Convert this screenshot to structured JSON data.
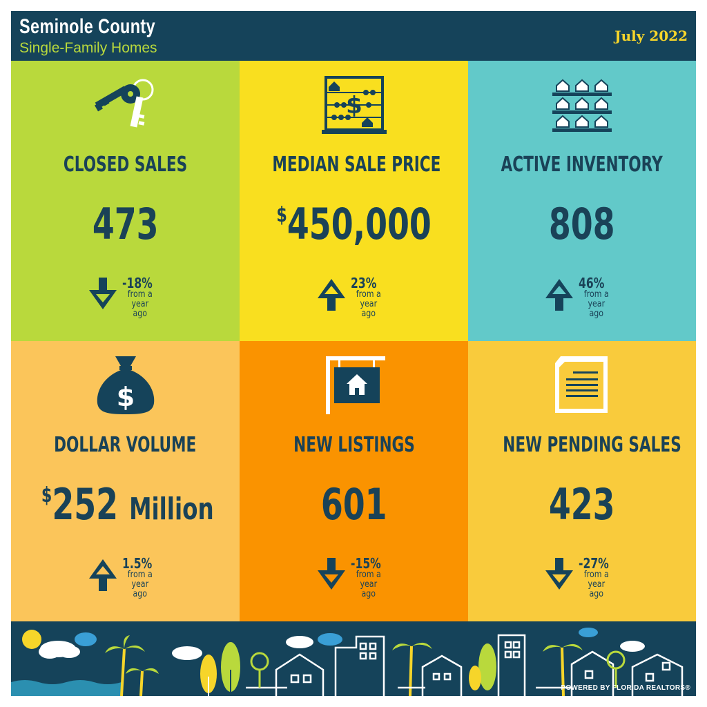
{
  "header": {
    "title": "Seminole County",
    "subtitle": "Single-Family Homes",
    "date": "July 2022"
  },
  "tiles": [
    {
      "label": "CLOSED SALES",
      "prefix": "",
      "value": "473",
      "unit": "",
      "direction": "down",
      "change": "-18%",
      "note_line1": "from a",
      "note_line2": "year ago",
      "color": "#b9d93c",
      "icon": "keys-icon"
    },
    {
      "label": "MEDIAN SALE PRICE",
      "prefix": "$",
      "value": "450,000",
      "unit": "",
      "direction": "up",
      "change": "23%",
      "note_line1": "from a",
      "note_line2": "year ago",
      "color": "#f9df1f",
      "icon": "abacus-icon"
    },
    {
      "label": "ACTIVE INVENTORY",
      "prefix": "",
      "value": "808",
      "unit": "",
      "direction": "up",
      "change": "46%",
      "note_line1": "from a",
      "note_line2": "year ago",
      "color": "#62c9c9",
      "icon": "houses-shelves-icon"
    },
    {
      "label": "DOLLAR VOLUME",
      "prefix": "$",
      "value": "252",
      "unit": "Million",
      "direction": "up",
      "change": "1.5%",
      "note_line1": "from a",
      "note_line2": "year ago",
      "color": "#fbc55a",
      "icon": "money-bag-icon"
    },
    {
      "label": "NEW LISTINGS",
      "prefix": "",
      "value": "601",
      "unit": "",
      "direction": "down",
      "change": "-15%",
      "note_line1": "from a",
      "note_line2": "year ago",
      "color": "#fa9300",
      "icon": "for-sale-sign-icon"
    },
    {
      "label": "NEW PENDING SALES",
      "prefix": "",
      "value": "423",
      "unit": "",
      "direction": "down",
      "change": "-27%",
      "note_line1": "from a",
      "note_line2": "year ago",
      "color": "#f9cb3c",
      "icon": "document-icon"
    }
  ],
  "footer": {
    "powered_by": "POWERED BY FLORIDA REALTORS®"
  },
  "colors": {
    "navy": "#15435a",
    "text": "#1a4257",
    "subtitle_green": "#b9d93c",
    "date_yellow": "#f6d52a"
  }
}
